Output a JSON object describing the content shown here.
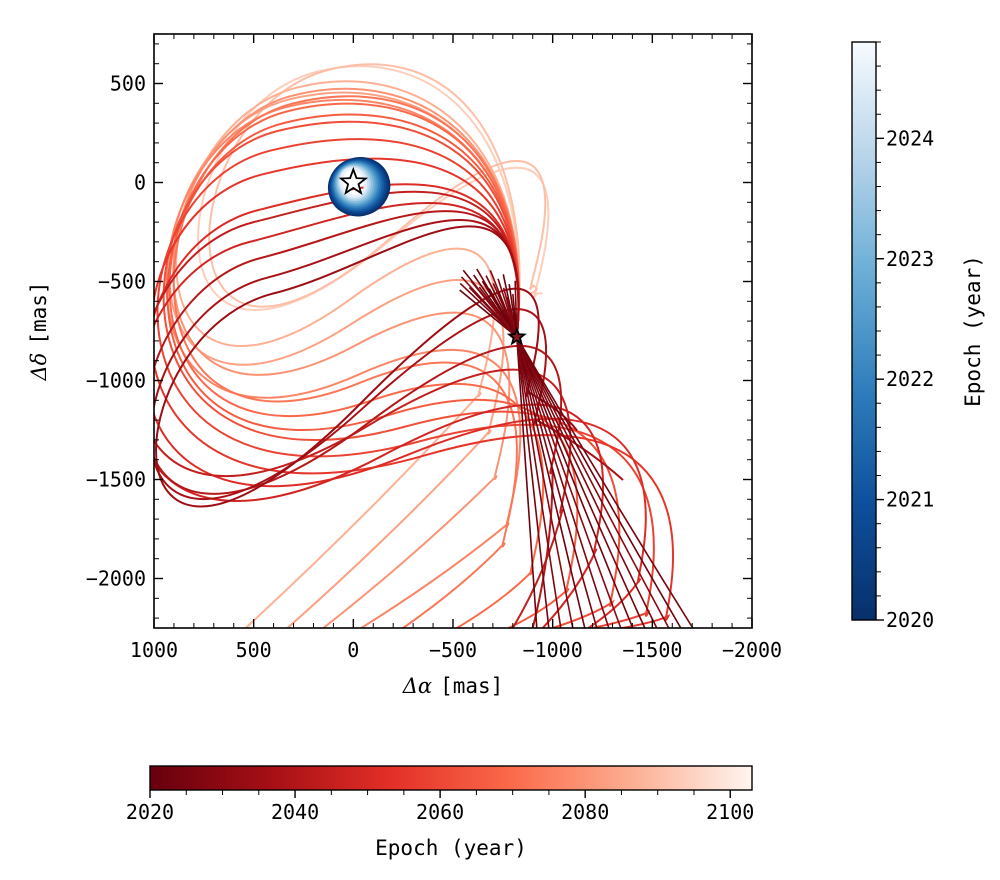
{
  "chart_data": {
    "type": "line",
    "title": "",
    "xlabel": {
      "symbol": "Δα",
      "unit": "[mas]"
    },
    "ylabel": {
      "symbol": "Δδ",
      "unit": "[mas]"
    },
    "xlim": [
      1000,
      -2000
    ],
    "ylim": [
      -2250,
      750
    ],
    "xticks": [
      1000,
      500,
      0,
      -500,
      -1000,
      -1500,
      -2000
    ],
    "yticks": [
      500,
      0,
      -500,
      -1000,
      -1500,
      -2000
    ],
    "xtick_labels": [
      "1000",
      "500",
      "0",
      "−500",
      "−1000",
      "−1500",
      "−2000"
    ],
    "ytick_labels": [
      "500",
      "0",
      "−500",
      "−1000",
      "−1500",
      "−2000"
    ],
    "grid": false,
    "primary_star": {
      "x": 0,
      "y": 0,
      "marker": "star",
      "color": "#ffffff"
    },
    "companion_star": {
      "x": -820,
      "y": -780,
      "marker": "star",
      "color": "#8b1a1a"
    },
    "outer_orbits": {
      "colormap": "Reds_r",
      "epoch_range": [
        2020,
        2103
      ],
      "node": {
        "x": -820,
        "y": -780
      },
      "tracks": [
        {
          "apex": [
            180,
            560
          ],
          "side": [
            -920,
            -560
          ],
          "end": [
            -920,
            -560
          ]
        },
        {
          "apex": [
            120,
            570
          ],
          "side": [
            -900,
            -520
          ],
          "end": [
            -890,
            -560
          ]
        },
        {
          "apex": [
            280,
            480
          ],
          "side": [
            -640,
            -1060
          ],
          "end": [
            540,
            -2250
          ]
        },
        {
          "apex": [
            320,
            420
          ],
          "side": [
            -690,
            -1250
          ],
          "end": [
            330,
            -2250
          ]
        },
        {
          "apex": [
            300,
            440
          ],
          "side": [
            -720,
            -1480
          ],
          "end": [
            150,
            -2250
          ]
        },
        {
          "apex": [
            340,
            380
          ],
          "side": [
            -780,
            -1720
          ],
          "end": [
            -40,
            -2250
          ]
        },
        {
          "apex": [
            300,
            400
          ],
          "side": [
            -760,
            -1820
          ],
          "end": [
            -250,
            -2250
          ]
        },
        {
          "apex": [
            330,
            360
          ],
          "side": [
            -900,
            -1960
          ],
          "end": [
            -520,
            -2250
          ]
        },
        {
          "apex": [
            350,
            300
          ],
          "side": [
            -1080,
            -2050
          ],
          "end": [
            -780,
            -2250
          ]
        },
        {
          "apex": [
            380,
            260
          ],
          "side": [
            -1300,
            -2120
          ],
          "end": [
            -1000,
            -2250
          ]
        },
        {
          "apex": [
            420,
            160
          ],
          "side": [
            -1480,
            -2170
          ],
          "end": [
            -1200,
            -2250
          ]
        },
        {
          "apex": [
            460,
            40
          ],
          "side": [
            -1580,
            -2190
          ],
          "end": [
            -1350,
            -2250
          ]
        },
        {
          "apex": [
            480,
            -140
          ],
          "side": [
            -1440,
            -2000
          ],
          "end": [
            -1180,
            -2250
          ]
        },
        {
          "apex": [
            520,
            -300
          ],
          "side": [
            -1220,
            -1850
          ],
          "end": [
            -950,
            -2250
          ]
        },
        {
          "apex": [
            500,
            -200
          ],
          "side": [
            -1050,
            -1650
          ],
          "end": [
            -800,
            -2250
          ]
        },
        {
          "apex": [
            460,
            -380
          ],
          "side": [
            -1000,
            -1450
          ],
          "end": [
            -900,
            -2250
          ]
        },
        {
          "apex": [
            430,
            -480
          ],
          "side": [
            -920,
            -1200
          ],
          "end": [
            -1350,
            -1500
          ]
        },
        {
          "apex": [
            400,
            -560
          ],
          "side": [
            -880,
            -1060
          ],
          "end": [
            -1120,
            -1250
          ]
        }
      ]
    },
    "inner_orbits": {
      "colormap": "Blues_r",
      "epoch_range": [
        2020,
        2024.8
      ],
      "center": {
        "x": 0,
        "y": 0
      },
      "rx_range": [
        60,
        150
      ],
      "ry_range": [
        70,
        140
      ]
    },
    "colorbars": [
      {
        "name": "Epoch (year)",
        "orientation": "vertical",
        "colormap": "Blues_r",
        "range": [
          2020,
          2024.8
        ],
        "ticks": [
          "2020",
          "2021",
          "2022",
          "2023",
          "2024"
        ]
      },
      {
        "name": "Epoch (year)",
        "orientation": "horizontal",
        "colormap": "Reds_r",
        "range": [
          2020,
          2103
        ],
        "ticks": [
          "2020",
          "2040",
          "2060",
          "2080",
          "2100"
        ]
      }
    ]
  }
}
